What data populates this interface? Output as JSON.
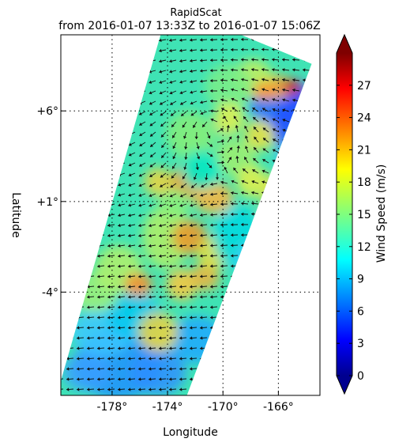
{
  "title": {
    "line1": "RapidScat",
    "line2": "from 2016-01-07 13:33Z to 2016-01-07 15:06Z"
  },
  "axes": {
    "xlabel": "Longitude",
    "ylabel": "Latitude"
  },
  "chart_data": {
    "type": "heatmap",
    "title": "RapidScat from 2016-01-07 13:33Z to 2016-01-07 15:06Z",
    "xlabel": "Longitude",
    "ylabel": "Latitude",
    "xlim": [
      -181.7,
      -163.0
    ],
    "ylim": [
      -9.7,
      10.2
    ],
    "x_ticks": [
      {
        "value": -178,
        "label": "-178°"
      },
      {
        "value": -174,
        "label": "-174°"
      },
      {
        "value": -170,
        "label": "-170°"
      },
      {
        "value": -166,
        "label": "-166°"
      }
    ],
    "y_ticks": [
      {
        "value": 6,
        "label": "+6°"
      },
      {
        "value": 1,
        "label": "+1°"
      },
      {
        "value": -4,
        "label": "-4°"
      }
    ],
    "grid": true,
    "colorbar": {
      "label": "Wind Speed (m/s)",
      "min": 0,
      "max": 30,
      "ticks": [
        0,
        3,
        6,
        9,
        12,
        15,
        18,
        21,
        24,
        27
      ],
      "colormap": "jet",
      "extend": "both"
    },
    "swath_corners": [
      [
        -182.0,
        -9.7
      ],
      [
        -172.6,
        -9.7
      ],
      [
        -163.6,
        8.6
      ],
      [
        -168.7,
        10.2
      ],
      [
        -174.5,
        10.2
      ]
    ],
    "features": [
      {
        "kind": "cyclonic-circulation",
        "center_lon": -170.6,
        "center_lat": 5.1
      },
      {
        "kind": "wind-max",
        "lon": -165.8,
        "lat": 8.1,
        "value": 29
      },
      {
        "kind": "wind-max",
        "lon": -172.3,
        "lat": -0.2,
        "value": 25
      },
      {
        "kind": "low-wind-area",
        "lon": -164.8,
        "lat": 5.8,
        "value": 6
      }
    ]
  }
}
